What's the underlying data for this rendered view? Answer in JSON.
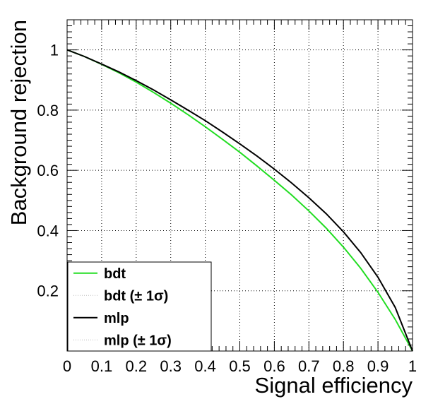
{
  "chart_data": {
    "type": "line",
    "title": "",
    "xlabel": "Signal efficiency",
    "ylabel": "Background rejection",
    "xlim": [
      0,
      1
    ],
    "ylim": [
      0,
      1.1
    ],
    "x_ticks": [
      "0",
      "0.1",
      "0.2",
      "0.3",
      "0.4",
      "0.5",
      "0.6",
      "0.7",
      "0.8",
      "0.9",
      "1"
    ],
    "y_ticks": [
      "0.2",
      "0.4",
      "0.6",
      "0.8",
      "1"
    ],
    "grid": true,
    "legend_position": "bottom-left",
    "series": [
      {
        "name": "bdt",
        "color": "#22dd22",
        "style": "solid",
        "x": [
          0,
          0.05,
          0.1,
          0.15,
          0.2,
          0.25,
          0.3,
          0.35,
          0.4,
          0.45,
          0.5,
          0.55,
          0.6,
          0.65,
          0.7,
          0.75,
          0.8,
          0.85,
          0.9,
          0.95,
          1.0
        ],
        "y": [
          1.0,
          0.978,
          0.952,
          0.924,
          0.893,
          0.859,
          0.823,
          0.785,
          0.745,
          0.703,
          0.66,
          0.614,
          0.567,
          0.518,
          0.465,
          0.408,
          0.345,
          0.275,
          0.195,
          0.105,
          0.0
        ]
      },
      {
        "name": "bdt (± 1σ)",
        "color": "#bbbbbb",
        "style": "dotted",
        "x": [],
        "y": []
      },
      {
        "name": "mlp",
        "color": "#000000",
        "style": "solid",
        "x": [
          0,
          0.05,
          0.1,
          0.15,
          0.2,
          0.25,
          0.3,
          0.35,
          0.4,
          0.45,
          0.5,
          0.55,
          0.6,
          0.65,
          0.7,
          0.75,
          0.8,
          0.85,
          0.9,
          0.95,
          1.0
        ],
        "y": [
          1.0,
          0.978,
          0.953,
          0.927,
          0.898,
          0.867,
          0.834,
          0.8,
          0.765,
          0.727,
          0.688,
          0.647,
          0.604,
          0.558,
          0.509,
          0.456,
          0.396,
          0.327,
          0.245,
          0.145,
          0.0
        ]
      },
      {
        "name": "mlp (± 1σ)",
        "color": "#bbbbbb",
        "style": "dotted",
        "x": [],
        "y": []
      }
    ]
  }
}
